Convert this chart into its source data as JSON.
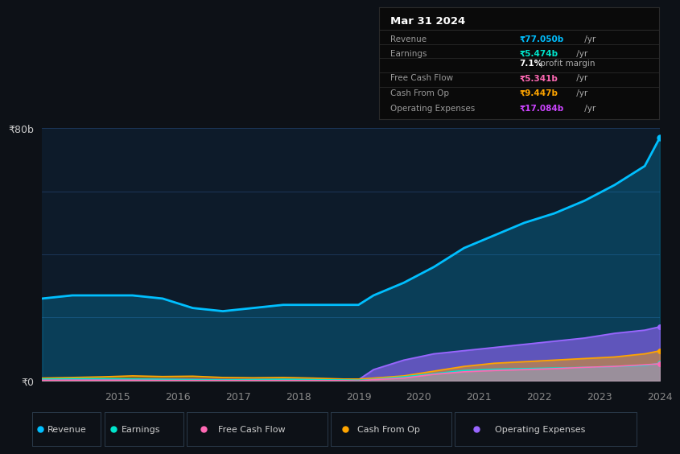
{
  "background_color": "#0d1117",
  "plot_bg_color": "#0d1b2a",
  "years": [
    2013.75,
    2014.25,
    2014.75,
    2015.25,
    2015.75,
    2016.25,
    2016.75,
    2017.25,
    2017.75,
    2018.25,
    2018.75,
    2019.0,
    2019.25,
    2019.75,
    2020.25,
    2020.75,
    2021.25,
    2021.75,
    2022.25,
    2022.75,
    2023.25,
    2023.75,
    2024.0
  ],
  "revenue": [
    26,
    27,
    27,
    27,
    26,
    23,
    22,
    23,
    24,
    24,
    24,
    24,
    27,
    31,
    36,
    42,
    46,
    50,
    53,
    57,
    62,
    68,
    77
  ],
  "earnings": [
    0.5,
    0.6,
    0.6,
    0.5,
    0.4,
    0.3,
    0.2,
    0.3,
    0.4,
    0.3,
    0.2,
    0.1,
    0.4,
    1.2,
    2.2,
    3.2,
    3.6,
    3.8,
    4.0,
    4.2,
    4.5,
    4.8,
    5.474
  ],
  "free_cash_flow": [
    0.1,
    0.1,
    0.1,
    0.1,
    0.05,
    0.02,
    0.01,
    0.02,
    0.02,
    0.01,
    0.0,
    -0.1,
    0.3,
    0.8,
    2.0,
    2.8,
    3.2,
    3.5,
    3.8,
    4.2,
    4.5,
    5.0,
    5.341
  ],
  "cash_from_op": [
    0.8,
    1.0,
    1.2,
    1.5,
    1.3,
    1.4,
    1.0,
    0.9,
    1.0,
    0.8,
    0.5,
    0.5,
    0.8,
    1.5,
    3.0,
    4.5,
    5.5,
    6.0,
    6.5,
    7.0,
    7.5,
    8.5,
    9.447
  ],
  "operating_expenses": [
    0.5,
    0.5,
    0.5,
    0.5,
    0.4,
    0.4,
    0.3,
    0.3,
    0.3,
    0.3,
    0.3,
    0.3,
    3.5,
    6.5,
    8.5,
    9.5,
    10.5,
    11.5,
    12.5,
    13.5,
    15.0,
    16.0,
    17.084
  ],
  "revenue_color": "#00bfff",
  "earnings_color": "#00e5cc",
  "free_cash_flow_color": "#ff69b4",
  "cash_from_op_color": "#ffa500",
  "operating_expenses_color": "#9966ff",
  "ylim": [
    0,
    80
  ],
  "ytick_labels": [
    "₹0",
    "₹80b"
  ],
  "xticks": [
    2015,
    2016,
    2017,
    2018,
    2019,
    2020,
    2021,
    2022,
    2023,
    2024
  ],
  "grid_color": "#1e3a5f",
  "grid_color_strong": "#263d5a",
  "info_box": {
    "title": "Mar 31 2024",
    "rows": [
      {
        "label": "Revenue",
        "value": "₹77.050b /yr",
        "value_color": "#00bfff",
        "divider_above": false
      },
      {
        "label": "Earnings",
        "value": "₹5.474b /yr",
        "value_color": "#00e5cc",
        "divider_above": true
      },
      {
        "label": "",
        "value": "7.1% profit margin",
        "value_color": "#ffffff",
        "divider_above": false
      },
      {
        "label": "Free Cash Flow",
        "value": "₹5.341b /yr",
        "value_color": "#ff69b4",
        "divider_above": true
      },
      {
        "label": "Cash From Op",
        "value": "₹9.447b /yr",
        "value_color": "#ffa500",
        "divider_above": true
      },
      {
        "label": "Operating Expenses",
        "value": "₹17.084b /yr",
        "value_color": "#cc44ff",
        "divider_above": true
      }
    ]
  },
  "legend_items": [
    {
      "label": "Revenue",
      "color": "#00bfff"
    },
    {
      "label": "Earnings",
      "color": "#00e5cc"
    },
    {
      "label": "Free Cash Flow",
      "color": "#ff69b4"
    },
    {
      "label": "Cash From Op",
      "color": "#ffa500"
    },
    {
      "label": "Operating Expenses",
      "color": "#9966ff"
    }
  ]
}
